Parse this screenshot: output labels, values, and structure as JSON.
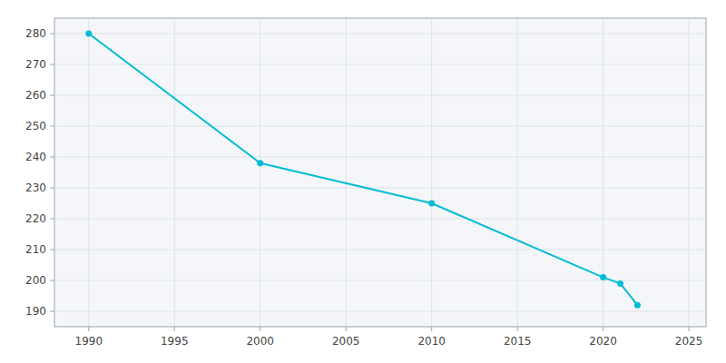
{
  "chart_data": {
    "type": "line",
    "x": [
      1990,
      2000,
      2010,
      2020,
      2021,
      2022
    ],
    "values": [
      280,
      238,
      225,
      201,
      199,
      192
    ],
    "color": "#00BCD4",
    "marker": "circle",
    "xlim": [
      1988,
      2026
    ],
    "ylim": [
      185,
      285
    ],
    "xticks": [
      1990,
      1995,
      2000,
      2005,
      2010,
      2015,
      2020,
      2025
    ],
    "yticks": [
      190,
      200,
      210,
      220,
      230,
      240,
      250,
      260,
      270,
      280
    ],
    "grid": true
  }
}
